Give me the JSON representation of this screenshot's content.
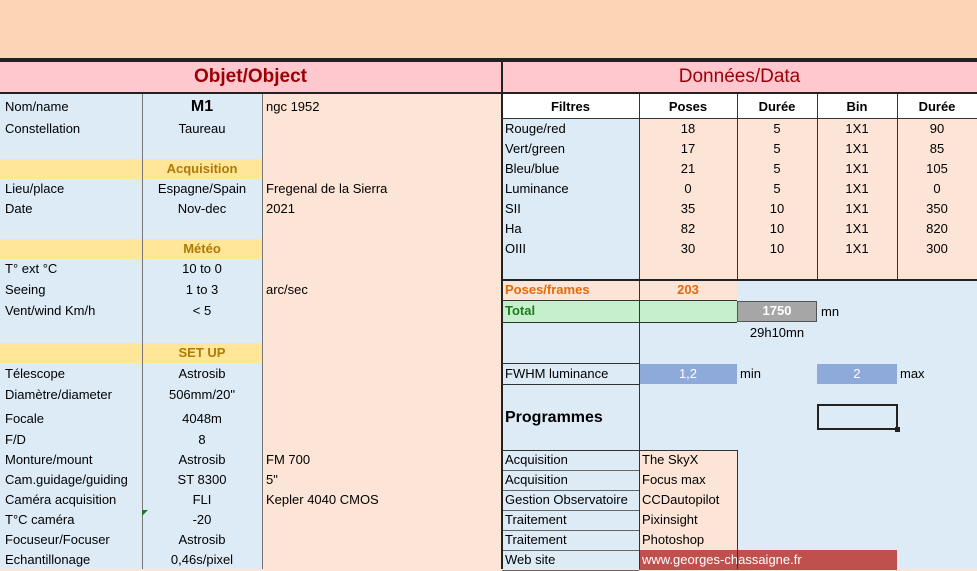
{
  "object": {
    "header": "Objet/Object",
    "rows": [
      {
        "label": "Nom/name",
        "value": "M1",
        "extra": "ngc 1952"
      },
      {
        "label": "Constellation",
        "value": "Taureau",
        "extra": ""
      },
      {
        "label": "Lieu/place",
        "value": "Espagne/Spain",
        "extra": "Fregenal de la Sierra"
      },
      {
        "label": "Date",
        "value": "Nov-dec",
        "extra": "2021"
      },
      {
        "label": "T° ext °C",
        "value": "10 to 0",
        "extra": ""
      },
      {
        "label": "Seeing",
        "value": "1 to 3",
        "extra": "arc/sec"
      },
      {
        "label": "Vent/wind  Km/h",
        "value": "< 5",
        "extra": ""
      },
      {
        "label": "Télescope",
        "value": "Astrosib",
        "extra": ""
      },
      {
        "label": "Diamètre/diameter",
        "value": "506mm/20\"",
        "extra": ""
      },
      {
        "label": "Focale",
        "value": "4048m",
        "extra": ""
      },
      {
        "label": "F/D",
        "value": "8",
        "extra": ""
      },
      {
        "label": "Monture/mount",
        "value": "Astrosib",
        "extra": "FM 700"
      },
      {
        "label": "Cam.guidage/guiding",
        "value": "ST 8300",
        "extra": "5\""
      },
      {
        "label": "Caméra acquisition",
        "value": "FLI",
        "extra": "Kepler 4040 CMOS"
      },
      {
        "label": "T°C caméra",
        "value": "-20",
        "extra": ""
      },
      {
        "label": "Focuseur/Focuser",
        "value": "Astrosib",
        "extra": ""
      },
      {
        "label": "Echantillonage",
        "value": "0,46s/pixel",
        "extra": ""
      }
    ],
    "sections": {
      "acquisition": "Acquisition",
      "meteo": "Météo",
      "setup": "SET UP"
    }
  },
  "data": {
    "header": "Données/Data",
    "columns": [
      "Filtres",
      "Poses",
      "Durée",
      "Bin",
      "Durée"
    ],
    "filters": [
      {
        "name": "Rouge/red",
        "poses": "18",
        "duree": "5",
        "bin": "1X1",
        "total": "90"
      },
      {
        "name": "Vert/green",
        "poses": "17",
        "duree": "5",
        "bin": "1X1",
        "total": "85"
      },
      {
        "name": "Bleu/blue",
        "poses": "21",
        "duree": "5",
        "bin": "1X1",
        "total": "105"
      },
      {
        "name": "Luminance",
        "poses": "0",
        "duree": "5",
        "bin": "1X1",
        "total": "0"
      },
      {
        "name": "SII",
        "poses": "35",
        "duree": "10",
        "bin": "1X1",
        "total": "350"
      },
      {
        "name": "Ha",
        "poses": "82",
        "duree": "10",
        "bin": "1X1",
        "total": "820"
      },
      {
        "name": "OIII",
        "poses": "30",
        "duree": "10",
        "bin": "1X1",
        "total": "300"
      }
    ],
    "poses_label": "Poses/frames",
    "poses_total": "203",
    "total_label": "Total",
    "total_value": "1750",
    "total_unit": "mn",
    "total_hm": "29h10mn",
    "fwhm_label": "FWHM luminance",
    "fwhm_min": "1,2",
    "fwhm_min_label": "min",
    "fwhm_max": "2",
    "fwhm_max_label": "max",
    "programmes_label": "Programmes",
    "programmes": [
      {
        "category": "Acquisition",
        "software": "The SkyX"
      },
      {
        "category": "Acquisition",
        "software": "Focus max"
      },
      {
        "category": "Gestion Observatoire",
        "software": "CCDautopilot"
      },
      {
        "category": "Traitement",
        "software": "Pixinsight"
      },
      {
        "category": "Traitement",
        "software": "Photoshop"
      },
      {
        "category": "Web site",
        "software": "www.georges-chassaigne.fr"
      }
    ]
  },
  "colors": {
    "header_pink": "#ffc7ce",
    "label_blue": "#ddebf7",
    "section_yellow": "#ffe699",
    "peach": "#fce4d6",
    "fwhm_blue": "#8eaadb",
    "total_gray": "#a6a6a6",
    "website_red": "#c0504d"
  }
}
